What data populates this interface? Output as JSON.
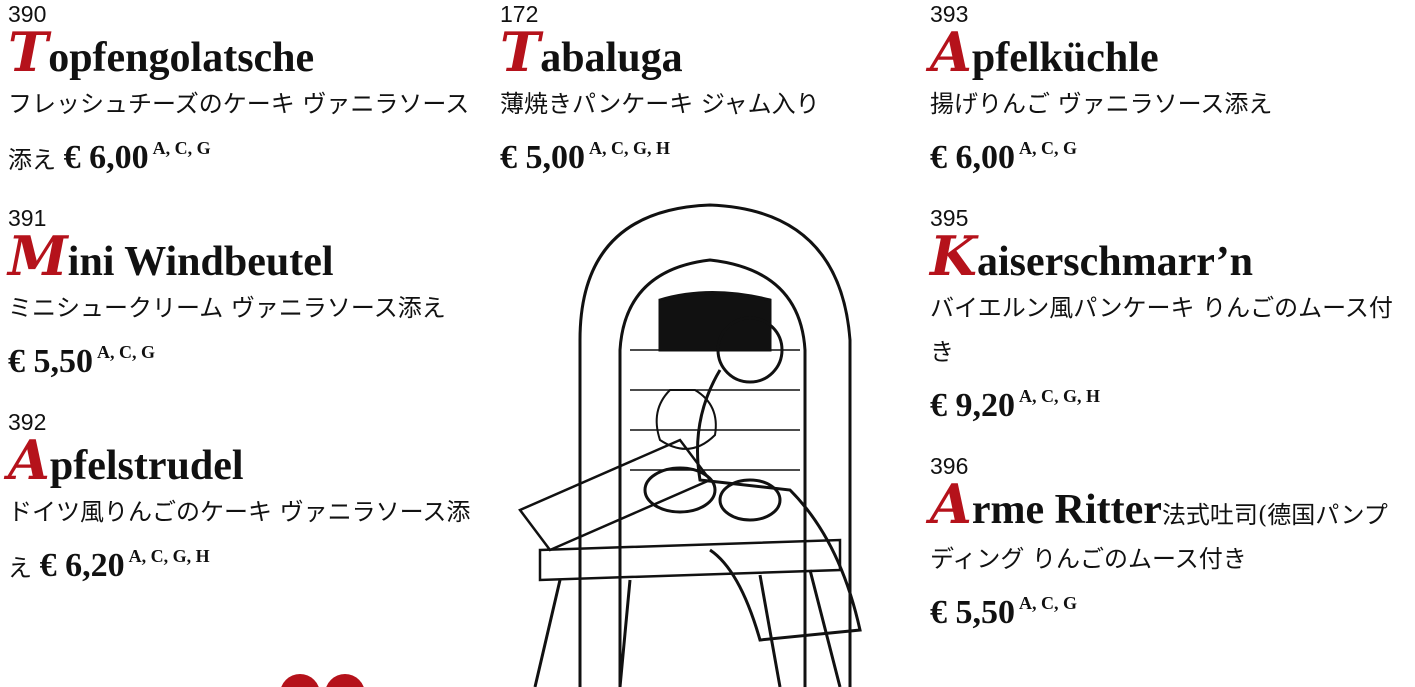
{
  "columns": [
    {
      "items": [
        {
          "number": "390",
          "initial": "T",
          "name": "opfengolatsche",
          "description": "フレッシュチーズのケーキ ヴァニラソース添え",
          "price": "€ 6,00",
          "allergens": "A, C, G"
        },
        {
          "number": "391",
          "initial": "M",
          "name": "ini Windbeutel",
          "description": "ミニシュークリーム ヴァニラソース添え",
          "price": "€ 5,50",
          "allergens": "A, C, G"
        },
        {
          "number": "392",
          "initial": "A",
          "name": "pfelstrudel",
          "description": "ドイツ風りんごのケーキ ヴァニラソース添え",
          "price": "€ 6,20",
          "allergens": "A, C, G, H"
        }
      ]
    },
    {
      "items": [
        {
          "number": "172",
          "initial": "T",
          "name": "abaluga",
          "description": "薄焼きパンケーキ ジャム入り",
          "price": "€ 5,00",
          "allergens": "A, C, G, H"
        }
      ]
    },
    {
      "items": [
        {
          "number": "393",
          "initial": "A",
          "name": "pfelküchle",
          "description": " 揚げりんご ヴァニラソース添え",
          "price": "€ 6,00",
          "allergens": "A, C, G"
        },
        {
          "number": "395",
          "initial": "K",
          "name": "aiserschmarr’n",
          "description": "バイエルン風パンケーキ りんごのムース付き",
          "price": "€ 9,20",
          "allergens": "A, C, G, H"
        },
        {
          "number": "396",
          "initial": "A",
          "name": "rme Ritter",
          "description": "法式吐司(德国パンプディング りんごのムース付き",
          "price": "€ 5,50",
          "allergens": "A, C, G"
        }
      ]
    }
  ]
}
